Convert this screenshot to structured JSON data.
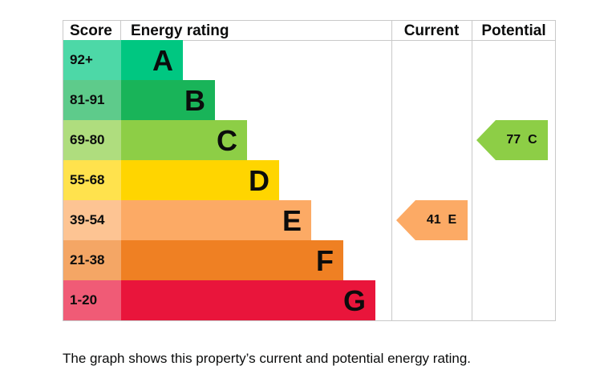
{
  "chart_data": {
    "type": "bar",
    "headers": {
      "score": "Score",
      "energy_rating": "Energy rating",
      "current": "Current",
      "potential": "Potential"
    },
    "bands": [
      {
        "score": "92+",
        "letter": "A",
        "color": "#00c781"
      },
      {
        "score": "81-91",
        "letter": "B",
        "color": "#19b459"
      },
      {
        "score": "69-80",
        "letter": "C",
        "color": "#8dce46"
      },
      {
        "score": "55-68",
        "letter": "D",
        "color": "#ffd500"
      },
      {
        "score": "39-54",
        "letter": "E",
        "color": "#fcaa65"
      },
      {
        "score": "21-38",
        "letter": "F",
        "color": "#ef8023"
      },
      {
        "score": "1-20",
        "letter": "G",
        "color": "#e9153b"
      }
    ],
    "current": {
      "value": 41,
      "letter": "E",
      "label": "41  E",
      "color": "#fcaa65"
    },
    "potential": {
      "value": 77,
      "letter": "C",
      "label": "77  C",
      "color": "#8dce46"
    }
  },
  "caption": "The graph shows this property’s current and potential energy rating."
}
